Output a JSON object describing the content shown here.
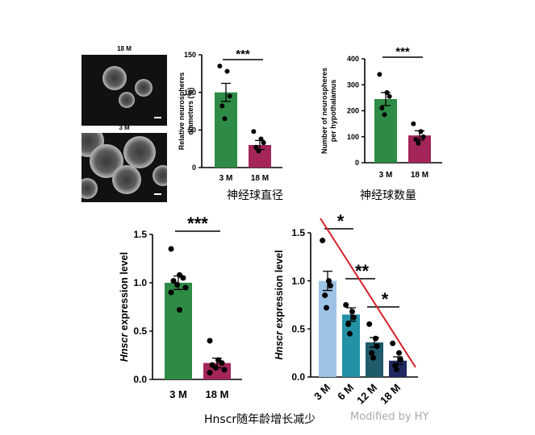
{
  "micrographs": [
    {
      "label": "18 M"
    },
    {
      "label": "3 M"
    }
  ],
  "captions": {
    "diameter": "神经球直径",
    "number": "神经球数量",
    "age_trend": "Hnscr随年龄增长减少"
  },
  "watermark": "Modified by HY",
  "colors": {
    "green": "#2e8b45",
    "maroon": "#a3255a",
    "light_blue": "#9ec3e6",
    "teal": "#2492a6",
    "dark_teal": "#1f5b6b",
    "navy": "#202a60",
    "trend_line": "#d42027"
  },
  "chart_data": [
    {
      "id": "diameter",
      "type": "bar",
      "ylabel": "Relative neurospheres diameters (%)",
      "ylim": [
        0,
        150
      ],
      "yticks": [
        "0",
        "50",
        "100",
        "150"
      ],
      "categories": [
        "3 M",
        "18 M"
      ],
      "values": [
        100,
        30
      ],
      "errors": [
        12,
        6
      ],
      "points": [
        [
          135,
          128,
          95,
          82,
          65
        ],
        [
          48,
          38,
          33,
          27,
          22
        ]
      ],
      "significance": [
        {
          "text": "***",
          "from": 0,
          "to": 1
        }
      ]
    },
    {
      "id": "number",
      "type": "bar",
      "ylabel": "Number of neurospheres per hypothalamus",
      "ylim": [
        0,
        400
      ],
      "yticks": [
        "0",
        "100",
        "200",
        "300",
        "400"
      ],
      "categories": [
        "3 M",
        "18 M"
      ],
      "values": [
        245,
        105
      ],
      "errors": [
        25,
        18
      ],
      "points": [
        [
          340,
          270,
          255,
          210,
          185
        ],
        [
          150,
          120,
          100,
          90,
          75
        ]
      ],
      "significance": [
        {
          "text": "***",
          "from": 0,
          "to": 1
        }
      ]
    },
    {
      "id": "hnscr_2groups",
      "type": "bar",
      "ylabel_italic": "Hnscr",
      "ylabel_rest": " expression level",
      "ylim": [
        0,
        1.5
      ],
      "yticks": [
        "0.0",
        "0.5",
        "1.0",
        "1.5"
      ],
      "categories": [
        "3 M",
        "18 M"
      ],
      "values": [
        1.0,
        0.17
      ],
      "errors": [
        0.07,
        0.05
      ],
      "points": [
        [
          1.35,
          1.08,
          1.05,
          1.02,
          0.98,
          0.95,
          0.9,
          0.72
        ],
        [
          0.4,
          0.2,
          0.17,
          0.15,
          0.12,
          0.1,
          0.07
        ]
      ],
      "significance": [
        {
          "text": "***",
          "from": 0,
          "to": 1
        }
      ]
    },
    {
      "id": "hnscr_4groups",
      "type": "bar",
      "ylabel_italic": "Hnscr",
      "ylabel_rest": " expression level",
      "ylim": [
        0,
        1.5
      ],
      "yticks": [
        "0.0",
        "0.5",
        "1.0",
        "1.5"
      ],
      "categories": [
        "3 M",
        "6 M",
        "12 M",
        "18 M"
      ],
      "values": [
        1.0,
        0.65,
        0.36,
        0.17
      ],
      "errors": [
        0.1,
        0.07,
        0.05,
        0.04
      ],
      "points": [
        [
          1.42,
          1.0,
          0.95,
          0.85,
          0.72
        ],
        [
          0.75,
          0.68,
          0.62,
          0.55,
          0.45
        ],
        [
          0.55,
          0.4,
          0.32,
          0.25,
          0.2
        ],
        [
          0.35,
          0.25,
          0.18,
          0.12,
          0.08
        ]
      ],
      "significance": [
        {
          "text": "*",
          "from": 0,
          "to": 1
        },
        {
          "text": "**",
          "from": 1,
          "to": 2
        },
        {
          "text": "*",
          "from": 2,
          "to": 3
        }
      ],
      "trend_line": true
    }
  ]
}
